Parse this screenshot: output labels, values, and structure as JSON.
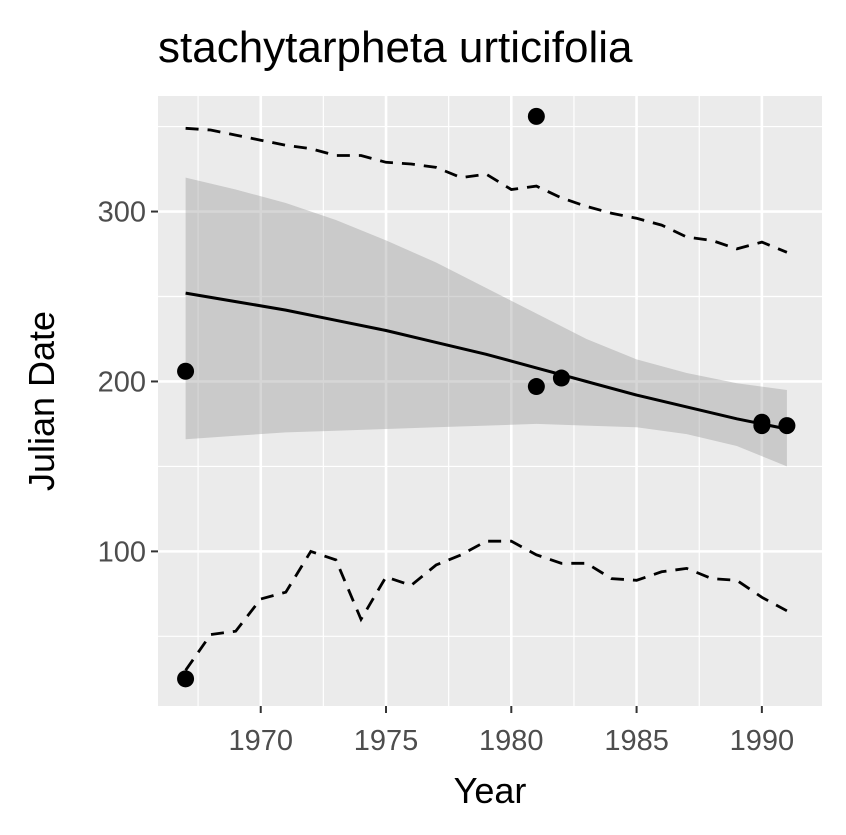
{
  "chart_data": {
    "type": "scatter",
    "title": "stachytarpheta urticifolia",
    "xlabel": "Year",
    "ylabel": "Julian Date",
    "xlim": [
      1965.9,
      1992.4
    ],
    "ylim": [
      9,
      368
    ],
    "x_major_ticks": [
      1970,
      1975,
      1980,
      1985,
      1990
    ],
    "x_minor_ticks": [
      1967.5,
      1972.5,
      1977.5,
      1982.5,
      1987.5
    ],
    "y_major_ticks": [
      100,
      200,
      300
    ],
    "y_minor_ticks": [
      50,
      150,
      250,
      350
    ],
    "x_tick_labels": [
      "1970",
      "1975",
      "1980",
      "1985",
      "1990"
    ],
    "y_tick_labels": [
      "100",
      "200",
      "300"
    ],
    "grid": true,
    "panel_background": "#ebebeb",
    "grid_color": "#ffffff",
    "points": [
      {
        "x": 1967,
        "y": 206
      },
      {
        "x": 1967,
        "y": 25
      },
      {
        "x": 1981,
        "y": 356
      },
      {
        "x": 1981,
        "y": 197
      },
      {
        "x": 1982,
        "y": 202
      },
      {
        "x": 1990,
        "y": 176
      },
      {
        "x": 1990,
        "y": 174
      },
      {
        "x": 1991,
        "y": 174
      }
    ],
    "fit_line": {
      "x": [
        1967,
        1969,
        1971,
        1973,
        1975,
        1977,
        1979,
        1981,
        1983,
        1985,
        1987,
        1989,
        1991
      ],
      "y": [
        252,
        247,
        242,
        236,
        230,
        223,
        216,
        208,
        200,
        192,
        185,
        178,
        172
      ]
    },
    "confidence_band": {
      "x": [
        1967,
        1969,
        1971,
        1973,
        1975,
        1977,
        1979,
        1981,
        1983,
        1985,
        1987,
        1989,
        1991
      ],
      "upper": [
        320,
        313,
        305,
        295,
        283,
        270,
        255,
        240,
        225,
        213,
        205,
        199,
        195
      ],
      "lower": [
        166,
        168,
        170,
        171,
        172,
        173,
        174,
        175,
        174,
        173,
        169,
        162,
        150
      ]
    },
    "upper_dashed": {
      "x": [
        1967,
        1968,
        1969,
        1970,
        1971,
        1972,
        1973,
        1974,
        1975,
        1976,
        1977,
        1978,
        1979,
        1980,
        1981,
        1982,
        1983,
        1984,
        1985,
        1986,
        1987,
        1988,
        1989,
        1990,
        1991
      ],
      "y": [
        349,
        348,
        345,
        342,
        339,
        337,
        333,
        333,
        329,
        328,
        326,
        320,
        322,
        313,
        315,
        308,
        303,
        299,
        296,
        292,
        285,
        283,
        278,
        282,
        276
      ]
    },
    "lower_dashed": {
      "x": [
        1967,
        1968,
        1969,
        1970,
        1971,
        1972,
        1973,
        1974,
        1975,
        1976,
        1977,
        1978,
        1979,
        1980,
        1981,
        1982,
        1983,
        1984,
        1985,
        1986,
        1987,
        1988,
        1989,
        1990,
        1991
      ],
      "y": [
        30,
        51,
        53,
        72,
        76,
        100,
        95,
        60,
        85,
        80,
        92,
        98,
        106,
        106,
        98,
        93,
        93,
        84,
        83,
        88,
        90,
        84,
        83,
        73,
        65
      ]
    },
    "colors": {
      "points": "#000000",
      "fit_line": "#000000",
      "confidence_band": "#999999",
      "dashed_lines": "#000000"
    }
  }
}
